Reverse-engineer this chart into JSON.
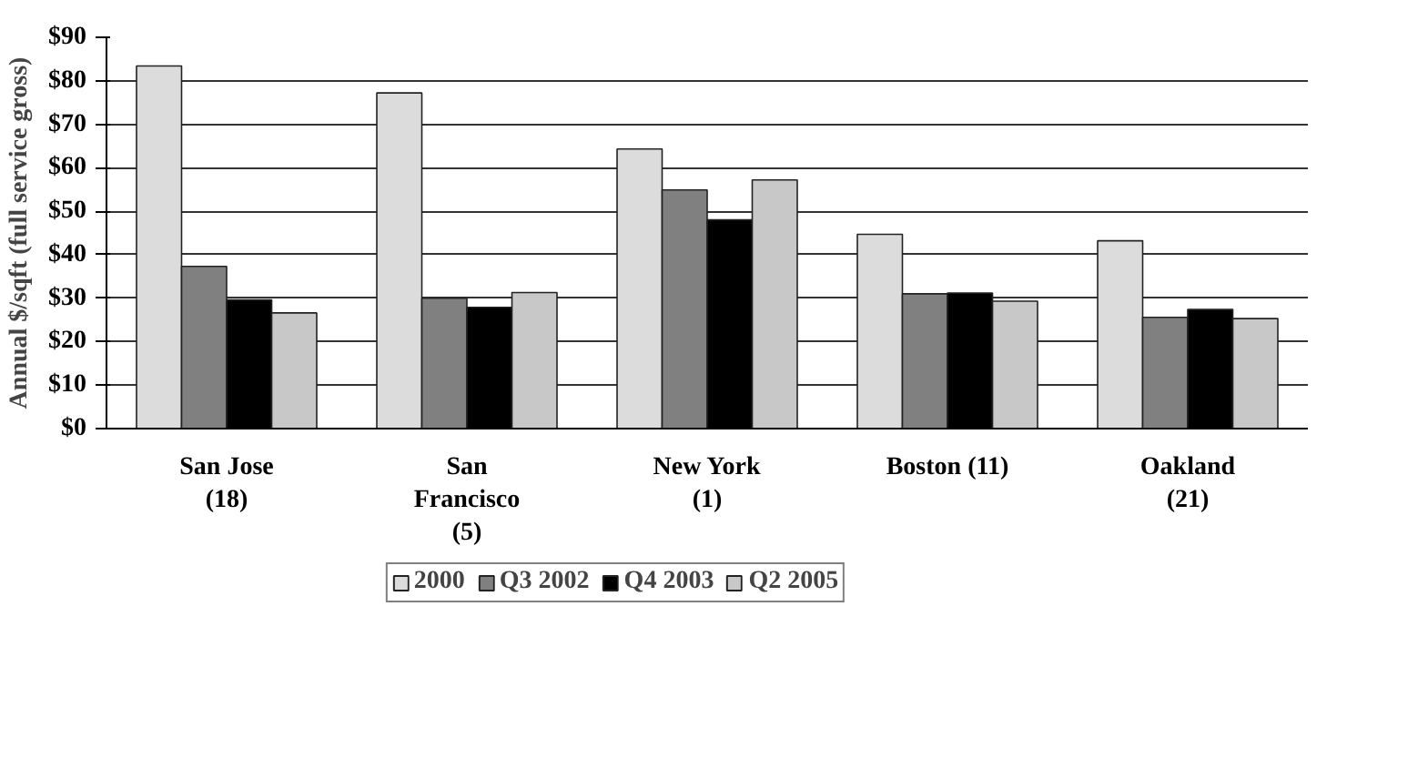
{
  "chart_data": {
    "type": "bar",
    "ylabel": "Annual $/sqft (full service gross)",
    "categories": [
      "San Jose (18)",
      "San Francisco (5)",
      "New York (1)",
      "Boston (11)",
      "Oakland (21)"
    ],
    "series": [
      {
        "name": "2000",
        "color": "#dcdcdc",
        "values": [
          83.4,
          77.2,
          64.3,
          44.7,
          43.2
        ]
      },
      {
        "name": "Q3 2002",
        "color": "#808080",
        "values": [
          37.3,
          30.0,
          54.9,
          31.0,
          25.6
        ]
      },
      {
        "name": "Q4 2003",
        "color": "#000000",
        "values": [
          29.6,
          27.9,
          48.0,
          31.2,
          27.4
        ]
      },
      {
        "name": "Q2 2005",
        "color": "#c8c8c8",
        "values": [
          26.6,
          31.3,
          57.2,
          29.3,
          25.3
        ]
      }
    ],
    "ylim": [
      0,
      90
    ],
    "yticks": [
      {
        "value": 0,
        "label": "$0"
      },
      {
        "value": 10,
        "label": "$10"
      },
      {
        "value": 20,
        "label": "$20"
      },
      {
        "value": 30,
        "label": "$30"
      },
      {
        "value": 40,
        "label": "$40"
      },
      {
        "value": 50,
        "label": "$50"
      },
      {
        "value": 60,
        "label": "$60"
      },
      {
        "value": 70,
        "label": "$70"
      },
      {
        "value": 80,
        "label": "$80"
      },
      {
        "value": 90,
        "label": "$90"
      }
    ],
    "grid": "y",
    "legend": "bottom"
  }
}
